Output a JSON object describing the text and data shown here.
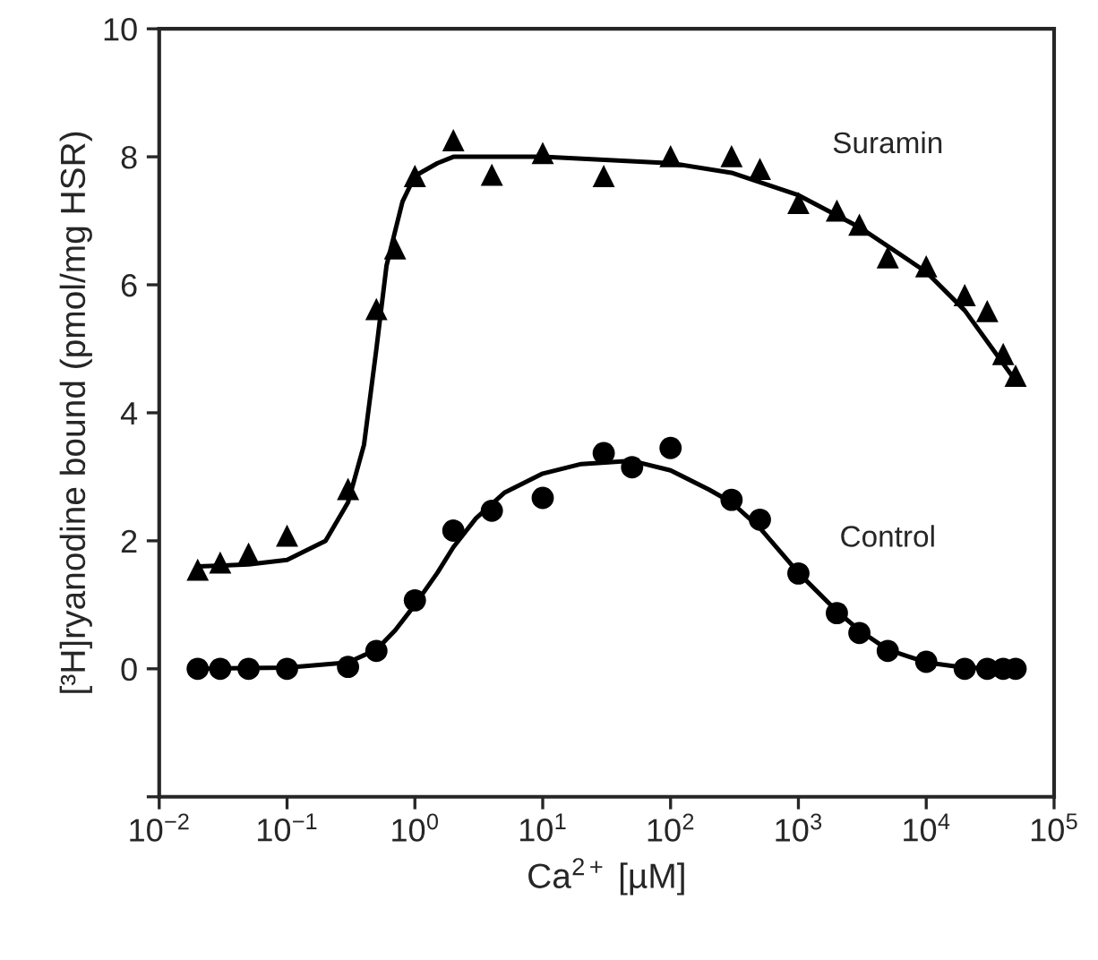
{
  "chart_data": {
    "type": "scatter",
    "xlabel": "Ca$^{2+}$ [µM]",
    "ylabel": "[³H]ryanodine bound (pmol/mg HSR)",
    "log": "x",
    "xlim": [
      0.01,
      100000
    ],
    "ylim": [
      -2,
      10
    ],
    "xticks": [
      {
        "value": 0.01,
        "label": "10$^{−2}$"
      },
      {
        "value": 0.1,
        "label": "10$^{−1}$"
      },
      {
        "value": 1,
        "label": "10$^{0}$"
      },
      {
        "value": 10,
        "label": "10$^{1}$"
      },
      {
        "value": 100,
        "label": "10$^{2}$"
      },
      {
        "value": 1000,
        "label": "10$^{3}$"
      },
      {
        "value": 10000,
        "label": "10$^{4}$"
      },
      {
        "value": 100000,
        "label": "10$^{5}$"
      }
    ],
    "yticks": [
      {
        "value": -2,
        "label": null
      },
      0,
      2,
      4,
      6,
      8,
      10
    ],
    "grid": false,
    "legend": false,
    "series": [
      {
        "name": "Suramin",
        "marker": "triangle",
        "color": "#000000",
        "x": [
          0.02,
          0.03,
          0.05,
          0.1,
          0.3,
          0.5,
          0.7,
          1,
          2,
          4,
          10,
          30,
          100,
          300,
          500,
          1000,
          2000,
          3000,
          5000,
          10000,
          20000,
          30000,
          40000,
          50000
        ],
        "values": [
          1.55,
          1.66,
          1.8,
          2.08,
          2.81,
          5.62,
          6.57,
          7.7,
          8.26,
          7.72,
          8.06,
          7.7,
          8.01,
          8.01,
          7.81,
          7.28,
          7.16,
          6.94,
          6.43,
          6.29,
          5.84,
          5.59,
          4.92,
          4.58
        ]
      },
      {
        "name": "Control",
        "marker": "circle",
        "color": "#000000",
        "x": [
          0.02,
          0.03,
          0.05,
          0.1,
          0.3,
          0.5,
          1,
          2,
          4,
          10,
          30,
          50,
          100,
          300,
          500,
          1000,
          2000,
          3000,
          5000,
          10000,
          20000,
          30000,
          40000,
          50000
        ],
        "values": [
          0,
          0,
          0,
          0,
          0.03,
          0.28,
          1.07,
          2.16,
          2.47,
          2.67,
          3.37,
          3.15,
          3.45,
          2.64,
          2.33,
          1.49,
          0.87,
          0.56,
          0.28,
          0.11,
          0,
          0,
          0,
          0
        ]
      },
      {
        "type": "line",
        "line_style": "solid",
        "color": "#000000",
        "x": [
          0.02,
          0.05,
          0.1,
          0.2,
          0.3,
          0.4,
          0.5,
          0.6,
          0.8,
          1,
          1.5,
          2,
          10,
          100,
          300,
          1000,
          3000,
          10000,
          20000,
          50000
        ],
        "values": [
          1.6,
          1.63,
          1.7,
          2.0,
          2.6,
          3.5,
          5.0,
          6.3,
          7.3,
          7.7,
          7.9,
          8.0,
          8.0,
          7.9,
          7.75,
          7.4,
          6.9,
          6.2,
          5.6,
          4.5
        ]
      },
      {
        "type": "line",
        "line_style": "solid",
        "color": "#000000",
        "x": [
          0.02,
          0.1,
          0.3,
          0.5,
          0.7,
          1,
          1.5,
          2,
          3,
          5,
          10,
          20,
          50,
          100,
          200,
          300,
          500,
          1000,
          2000,
          3000,
          5000,
          10000,
          20000,
          50000
        ],
        "values": [
          0,
          0.02,
          0.1,
          0.3,
          0.6,
          1.0,
          1.5,
          1.9,
          2.35,
          2.75,
          3.05,
          3.2,
          3.25,
          3.1,
          2.8,
          2.6,
          2.2,
          1.5,
          0.9,
          0.6,
          0.3,
          0.1,
          0.02,
          0
        ]
      }
    ]
  }
}
